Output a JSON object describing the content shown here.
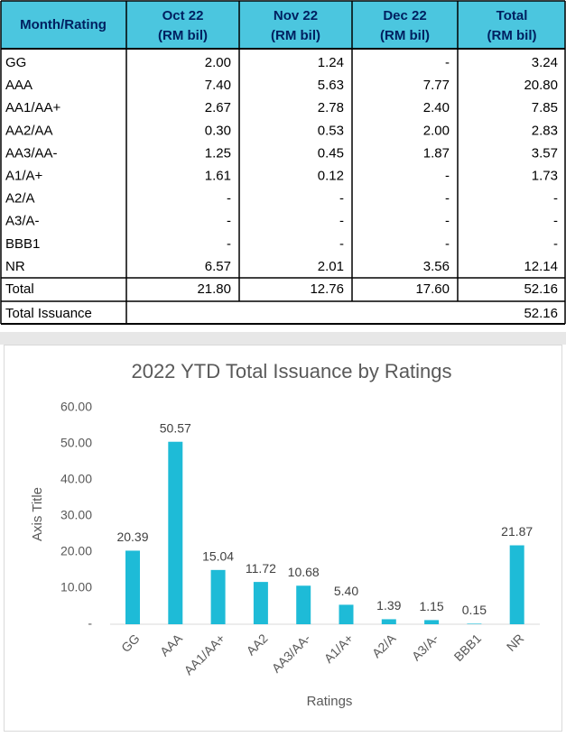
{
  "table": {
    "header": [
      "Month/Rating",
      "Oct 22",
      "Nov 22",
      "Dec 22",
      "Total"
    ],
    "header_units": [
      "(RM bil)",
      "(RM bil)",
      "(RM bil)",
      "(RM bil)"
    ],
    "rows": [
      [
        "GG",
        "2.00",
        "1.24",
        "-",
        "3.24"
      ],
      [
        "AAA",
        "7.40",
        "5.63",
        "7.77",
        "20.80"
      ],
      [
        "AA1/AA+",
        "2.67",
        "2.78",
        "2.40",
        "7.85"
      ],
      [
        "AA2/AA",
        "0.30",
        "0.53",
        "2.00",
        "2.83"
      ],
      [
        "AA3/AA-",
        "1.25",
        "0.45",
        "1.87",
        "3.57"
      ],
      [
        "A1/A+",
        "1.61",
        "0.12",
        "-",
        "1.73"
      ],
      [
        "A2/A",
        "-",
        "-",
        "-",
        "-"
      ],
      [
        "A3/A-",
        "-",
        "-",
        "-",
        "-"
      ],
      [
        "BBB1",
        "-",
        "-",
        "-",
        "-"
      ],
      [
        "NR",
        "6.57",
        "2.01",
        "3.56",
        "12.14"
      ],
      [
        "Total",
        "21.80",
        "12.76",
        "17.60",
        "52.16"
      ]
    ],
    "issuance": {
      "label": "Total Issuance",
      "value": "52.16"
    }
  },
  "chart_data": {
    "type": "bar",
    "title": "2022 YTD Total Issuance by Ratings",
    "x_label": "Ratings",
    "y_label": "Axis Title",
    "categories": [
      "GG",
      "AAA",
      "AA1/AA+",
      "AA2",
      "AA3/AA-",
      "A1/A+",
      "A2/A",
      "A3/A-",
      "BBB1",
      "NR"
    ],
    "values": [
      20.39,
      50.57,
      15.04,
      11.72,
      10.68,
      5.4,
      1.39,
      1.15,
      0.15,
      21.87
    ],
    "value_labels": [
      "20.39",
      "50.57",
      "15.04",
      "11.72",
      "10.68",
      "5.40",
      "1.39",
      "1.15",
      "0.15",
      "21.87"
    ],
    "color": "#1ebbd7",
    "ylim": [
      0,
      60
    ],
    "yticks": [
      {
        "value": 0,
        "label": "-"
      },
      {
        "value": 10,
        "label": "10.00"
      },
      {
        "value": 20,
        "label": "20.00"
      },
      {
        "value": 30,
        "label": "30.00"
      },
      {
        "value": 40,
        "label": "40.00"
      },
      {
        "value": 50,
        "label": "50.00"
      },
      {
        "value": 60,
        "label": "60.00"
      }
    ],
    "grid": false
  }
}
